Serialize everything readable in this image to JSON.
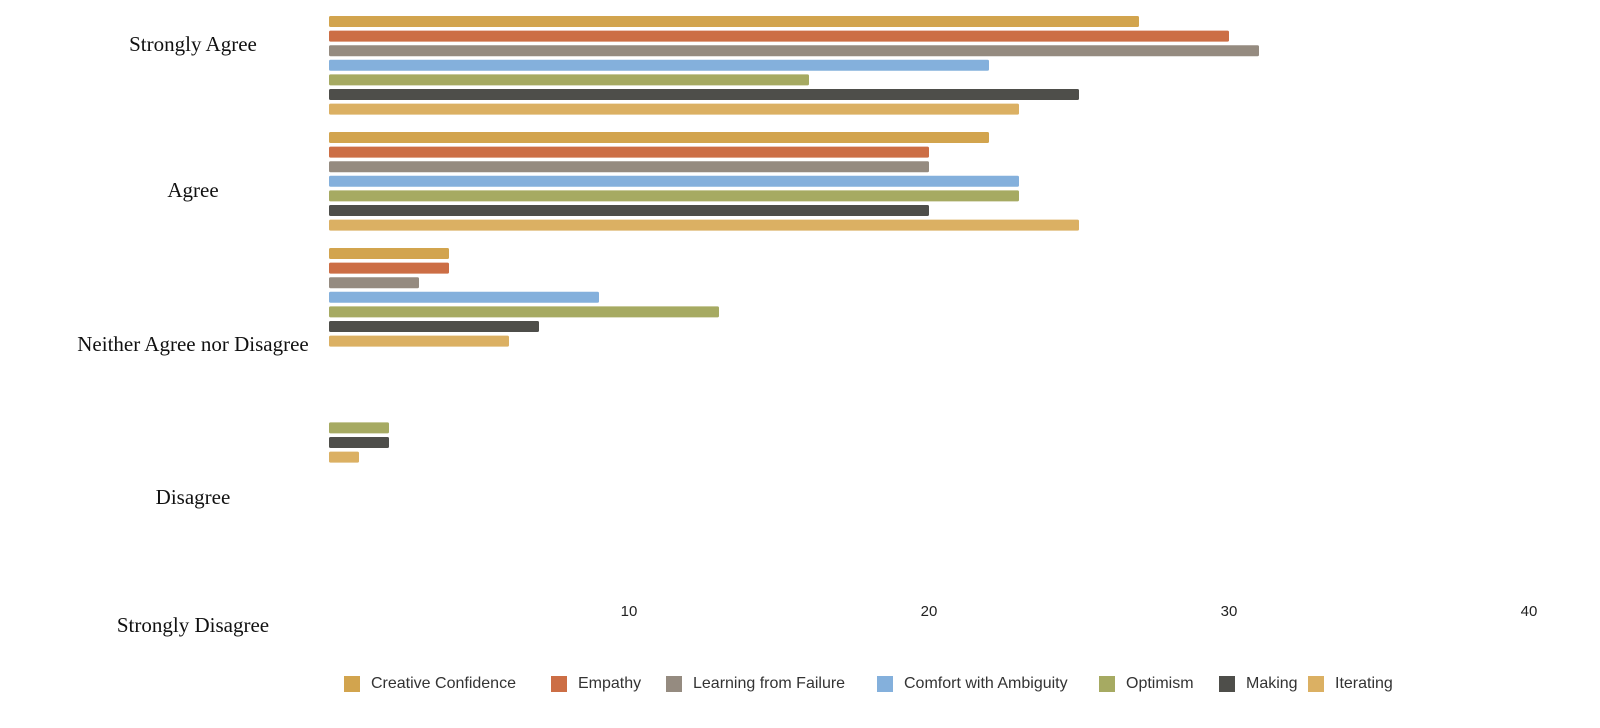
{
  "chart_data": {
    "type": "bar",
    "orientation": "horizontal",
    "categories": [
      "Strongly Agree",
      "Agree",
      "Neither Agree nor Disagree",
      "Disagree",
      "Strongly Disagree"
    ],
    "series": [
      {
        "name": "Creative Confidence",
        "color": "#d2a44e",
        "values": [
          27,
          22,
          4,
          0,
          0
        ]
      },
      {
        "name": "Empathy",
        "color": "#cc6e45",
        "values": [
          30,
          20,
          4,
          0,
          0
        ]
      },
      {
        "name": "Learning from Failure",
        "color": "#958b80",
        "values": [
          31,
          20,
          3,
          0,
          0
        ]
      },
      {
        "name": "Comfort with Ambiguity",
        "color": "#84b0dc",
        "values": [
          22,
          23,
          9,
          0,
          0
        ]
      },
      {
        "name": "Optimism",
        "color": "#a6aa62",
        "values": [
          16,
          23,
          13,
          2,
          0
        ]
      },
      {
        "name": "Making",
        "color": "#4e4e4a",
        "values": [
          25,
          20,
          7,
          2,
          0
        ]
      },
      {
        "name": "Iterating",
        "color": "#dbb063",
        "values": [
          23,
          25,
          6,
          1,
          0
        ]
      }
    ],
    "xlim": [
      0,
      40
    ],
    "xticks": [
      "10",
      "20",
      "30",
      "40"
    ],
    "xlabel": "",
    "ylabel": "",
    "title": "",
    "grid": false,
    "legend_position": "bottom"
  }
}
